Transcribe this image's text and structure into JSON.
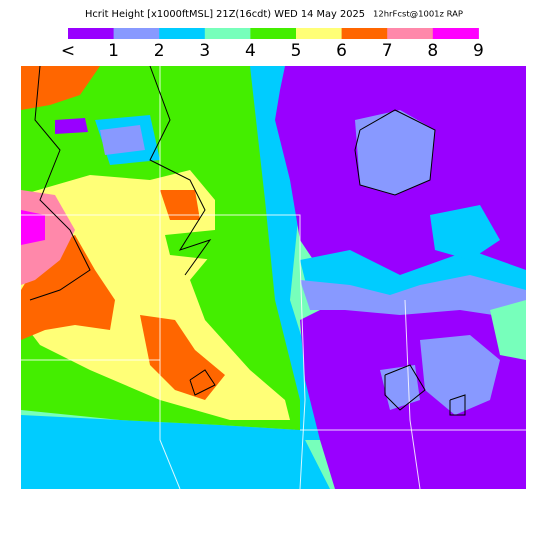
{
  "header": {
    "title": "Hcrit Height [x1000ftMSL] 21Z(16cdt) WED 14 May 2025",
    "forecast": "12hrFcst@1001z RAP"
  },
  "legend": {
    "labels": [
      "<",
      "1",
      "2",
      "3",
      "4",
      "5",
      "6",
      "7",
      "8",
      "9"
    ],
    "colors": [
      "#9900ff",
      "#8899ff",
      "#00ccff",
      "#77ffbb",
      "#44ee00",
      "#ffff77",
      "#ff6600",
      "#ff88aa",
      "#ff00ff"
    ]
  }
}
